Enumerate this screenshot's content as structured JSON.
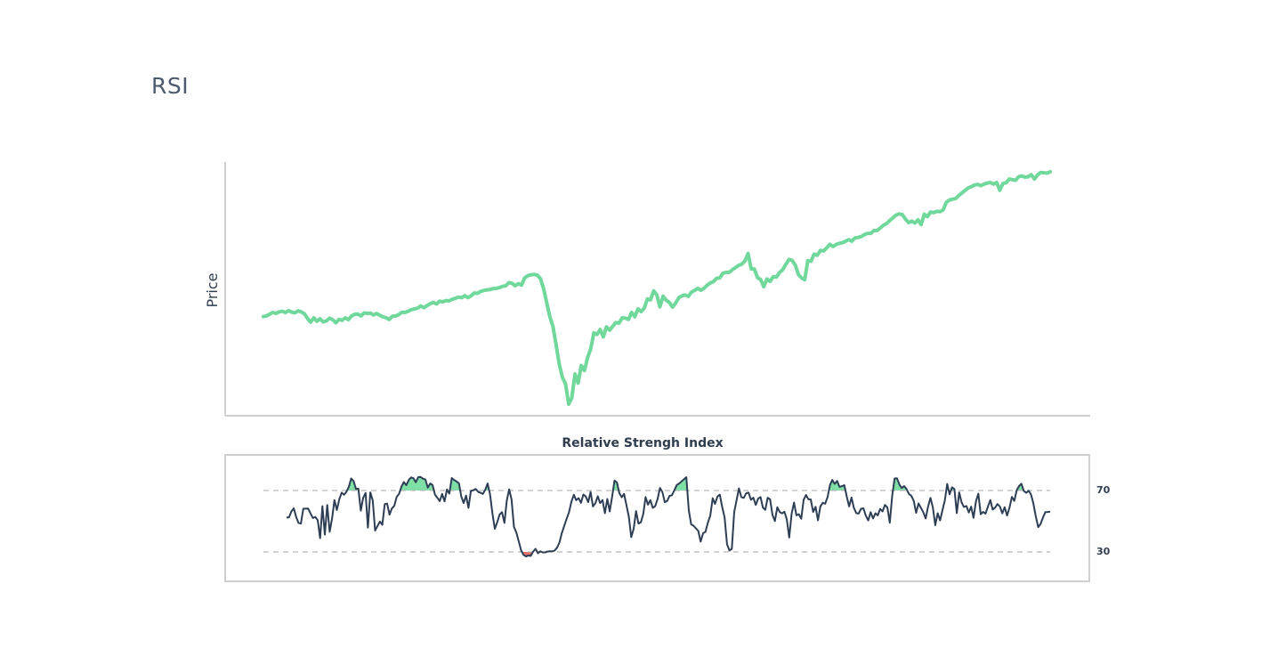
{
  "page": {
    "title": "RSI"
  },
  "chart_data": [
    {
      "type": "line",
      "ylabel": "Price",
      "grid": false,
      "series": [
        {
          "color": "#6fd89a",
          "values": [
            48.4,
            48.6,
            49.2,
            49.7,
            49.4,
            49.9,
            50.1,
            49.7,
            50.3,
            49.8,
            49.6,
            50.2,
            49.9,
            49.3,
            47.8,
            46.6,
            48.0,
            46.9,
            47.7,
            46.7,
            47.0,
            47.9,
            47.4,
            46.4,
            47.5,
            47.2,
            48.0,
            47.4,
            48.6,
            49.1,
            49.2,
            48.6,
            49.6,
            49.4,
            49.5,
            48.9,
            49.4,
            48.8,
            48.3,
            48.0,
            47.5,
            48.5,
            48.6,
            49.0,
            49.8,
            49.7,
            50.1,
            50.6,
            50.8,
            51.1,
            51.8,
            51.2,
            51.9,
            52.5,
            52.9,
            52.4,
            53.3,
            53.1,
            53.5,
            53.4,
            53.9,
            54.2,
            54.6,
            54.4,
            55.1,
            54.4,
            55.0,
            55.9,
            55.8,
            56.4,
            56.7,
            56.9,
            57.0,
            57.3,
            57.4,
            57.6,
            58.0,
            58.2,
            59.2,
            59.0,
            58.2,
            58.9,
            58.4,
            60.7,
            61.4,
            61.7,
            61.8,
            61.6,
            60.5,
            57.4,
            53.0,
            48.4,
            45.3,
            39.5,
            33.2,
            29.1,
            26.9,
            20.5,
            22.5,
            30.1,
            27.2,
            32.8,
            31.2,
            35.3,
            38.1,
            43.2,
            42.7,
            44.3,
            41.9,
            45.1,
            44.1,
            45.3,
            46.5,
            46.3,
            48.0,
            47.9,
            47.5,
            49.7,
            48.3,
            50.8,
            50.0,
            51.1,
            54.0,
            53.7,
            56.6,
            55.3,
            51.5,
            54.9,
            53.6,
            52.9,
            51.4,
            52.7,
            54.4,
            55.0,
            55.3,
            54.8,
            56.2,
            56.7,
            57.4,
            56.8,
            57.4,
            58.4,
            59.1,
            59.5,
            60.6,
            60.7,
            62.2,
            62.5,
            62.5,
            63.3,
            64.0,
            64.7,
            65.1,
            66.1,
            68.5,
            63.6,
            63.5,
            60.8,
            60.2,
            57.9,
            60.4,
            59.6,
            61.1,
            61.0,
            62.4,
            63.3,
            65.0,
            66.6,
            66.3,
            64.8,
            61.8,
            60.7,
            60.1,
            66.2,
            66.0,
            68.3,
            67.9,
            69.5,
            69.3,
            70.3,
            71.4,
            70.7,
            71.4,
            71.7,
            71.9,
            72.4,
            72.9,
            72.4,
            73.5,
            73.6,
            73.9,
            74.5,
            74.9,
            74.9,
            75.8,
            75.8,
            76.6,
            77.5,
            78.0,
            79.0,
            79.8,
            80.7,
            81.1,
            80.9,
            79.5,
            78.3,
            78.8,
            78.2,
            79.2,
            77.7,
            81.0,
            80.2,
            81.7,
            81.5,
            81.9,
            81.8,
            82.4,
            84.8,
            85.5,
            85.8,
            86.0,
            87.0,
            87.8,
            88.6,
            89.4,
            89.8,
            90.3,
            90.5,
            90.1,
            90.6,
            90.9,
            91.1,
            90.6,
            91.1,
            88.6,
            90.8,
            91.0,
            92.2,
            92.0,
            91.8,
            92.9,
            93.2,
            92.8,
            92.9,
            93.6,
            92.2,
            93.5,
            94.3,
            94.2,
            94.1,
            94.5
          ]
        }
      ]
    },
    {
      "type": "line",
      "title": "Relative Strengh Index",
      "ylim": [
        20,
        80
      ],
      "yticks": [
        "70",
        "30"
      ],
      "thresholds": [
        70,
        30
      ],
      "grid": false,
      "overbought_fill": "#7fe0a5",
      "oversold_fill": "#e8706a",
      "series": [
        {
          "color": "#2d3e55",
          "values": [
            52.5,
            52.5,
            56.4,
            58.4,
            52.7,
            48.9,
            48.5,
            58.2,
            58.2,
            58.3,
            55.1,
            52.1,
            52.8,
            50.7,
            39.0,
            59.8,
            41.3,
            60.6,
            43.1,
            51.6,
            63.8,
            57.3,
            64.2,
            68.6,
            67.3,
            69.1,
            72.3,
            77.8,
            76.2,
            71.0,
            71.2,
            56.9,
            65.3,
            68.4,
            45.8,
            68.8,
            63.7,
            44.0,
            46.9,
            49.7,
            47.7,
            61.1,
            61.5,
            54.3,
            58.3,
            60.0,
            65.8,
            67.8,
            72.6,
            75.5,
            73.5,
            76.7,
            78.5,
            78.0,
            75.4,
            78.7,
            78.8,
            77.7,
            77.2,
            71.9,
            74.6,
            73.5,
            67.3,
            65.3,
            63.1,
            67.8,
            62.9,
            70.7,
            68.0,
            78.1,
            76.8,
            75.9,
            74.7,
            66.2,
            61.8,
            66.7,
            58.7,
            69.7,
            70.2,
            71.0,
            69.2,
            68.5,
            67.8,
            70.4,
            74.6,
            67.6,
            55.2,
            45.1,
            49.3,
            54.4,
            55.9,
            48.9,
            63.3,
            70.8,
            64.2,
            46.3,
            42.7,
            36.8,
            30.9,
            28.1,
            27.1,
            27.7,
            27.4,
            30.1,
            32.0,
            29.2,
            30.4,
            29.7,
            29.7,
            30.3,
            30.4,
            30.4,
            30.9,
            32.8,
            36.1,
            42.3,
            47.0,
            51.6,
            55.9,
            62.8,
            67.2,
            63.7,
            65.1,
            62.0,
            67.4,
            66.1,
            62.4,
            69.1,
            59.6,
            61.7,
            66.3,
            61.8,
            63.8,
            55.2,
            64.5,
            56.4,
            65.9,
            76.5,
            75.3,
            68.3,
            65.6,
            67.8,
            60.5,
            52.9,
            39.6,
            45.0,
            56.6,
            48.5,
            49.3,
            54.7,
            65.7,
            60.8,
            63.7,
            58.7,
            59.8,
            64.5,
            71.7,
            69.0,
            62.4,
            63.2,
            66.5,
            66.9,
            70.1,
            73.6,
            74.6,
            75.9,
            77.3,
            78.7,
            57.4,
            48.0,
            47.1,
            45.4,
            43.6,
            36.7,
            42.2,
            43.1,
            49.1,
            53.6,
            65.0,
            61.3,
            66.0,
            67.3,
            59.2,
            52.5,
            35.1,
            30.9,
            32.0,
            56.0,
            63.8,
            71.4,
            65.7,
            65.2,
            68.2,
            68.6,
            64.0,
            65.3,
            60.6,
            64.7,
            65.7,
            58.9,
            57.4,
            65.3,
            64.2,
            54.1,
            50.1,
            59.1,
            56.0,
            55.1,
            56.2,
            51.1,
            39.4,
            54.8,
            62.2,
            53.8,
            54.6,
            51.6,
            64.0,
            67.1,
            64.3,
            64.2,
            56.0,
            59.4,
            50.6,
            59.6,
            62.0,
            61.4,
            65.7,
            73.6,
            76.9,
            74.3,
            76.2,
            72.4,
            72.8,
            73.5,
            66.2,
            59.6,
            65.4,
            58.8,
            55.3,
            55.0,
            58.1,
            58.4,
            53.6,
            50.5,
            55.9,
            51.8,
            55.2,
            53.8,
            58.0,
            56.4,
            60.6,
            59.0,
            49.0,
            66.5,
            77.8,
            78.0,
            73.9,
            71.6,
            72.9,
            71.0,
            67.8,
            66.6,
            63.3,
            55.5,
            61.6,
            58.7,
            55.9,
            51.8,
            59.5,
            65.2,
            59.0,
            47.4,
            55.2,
            50.5,
            57.2,
            63.7,
            74.3,
            67.5,
            72.1,
            71.0,
            55.3,
            68.8,
            62.2,
            59.3,
            59.9,
            55.7,
            59.5,
            52.2,
            62.9,
            67.9,
            54.6,
            56.1,
            55.0,
            59.6,
            63.8,
            57.6,
            58.8,
            61.2,
            59.6,
            55.1,
            59.1,
            53.7,
            58.8,
            65.9,
            63.2,
            70.0,
            72.9,
            74.4,
            69.7,
            68.5,
            69.8,
            67.4,
            61.4,
            53.0,
            46.2,
            48.2,
            52.4,
            55.9,
            56.0,
            56.2
          ]
        }
      ]
    }
  ]
}
